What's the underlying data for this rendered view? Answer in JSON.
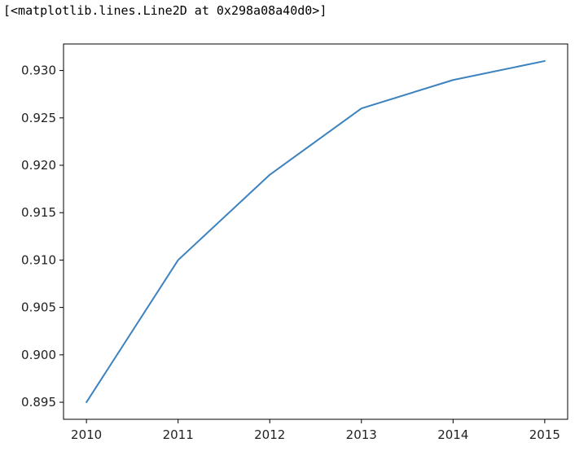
{
  "output": {
    "repr_text": "[<matplotlib.lines.Line2D at 0x298a08a40d0>]"
  },
  "chart_data": {
    "type": "line",
    "title": "",
    "xlabel": "",
    "ylabel": "",
    "grid": false,
    "x": [
      2010,
      2011,
      2012,
      2013,
      2014,
      2015
    ],
    "series": [
      {
        "color": "#3b82bf",
        "values": [
          0.895,
          0.91,
          0.919,
          0.926,
          0.929,
          0.931
        ]
      }
    ],
    "xlim": [
      2009.75,
      2015.25
    ],
    "ylim": [
      0.8932,
      0.9328
    ],
    "xticks": [
      2010,
      2011,
      2012,
      2013,
      2014,
      2015
    ],
    "xtick_labels": [
      "2010",
      "2011",
      "2012",
      "2013",
      "2014",
      "2015"
    ],
    "yticks": [
      0.895,
      0.9,
      0.905,
      0.91,
      0.915,
      0.92,
      0.925,
      0.93
    ],
    "ytick_labels": [
      "0.895",
      "0.900",
      "0.905",
      "0.910",
      "0.915",
      "0.920",
      "0.925",
      "0.930"
    ]
  }
}
